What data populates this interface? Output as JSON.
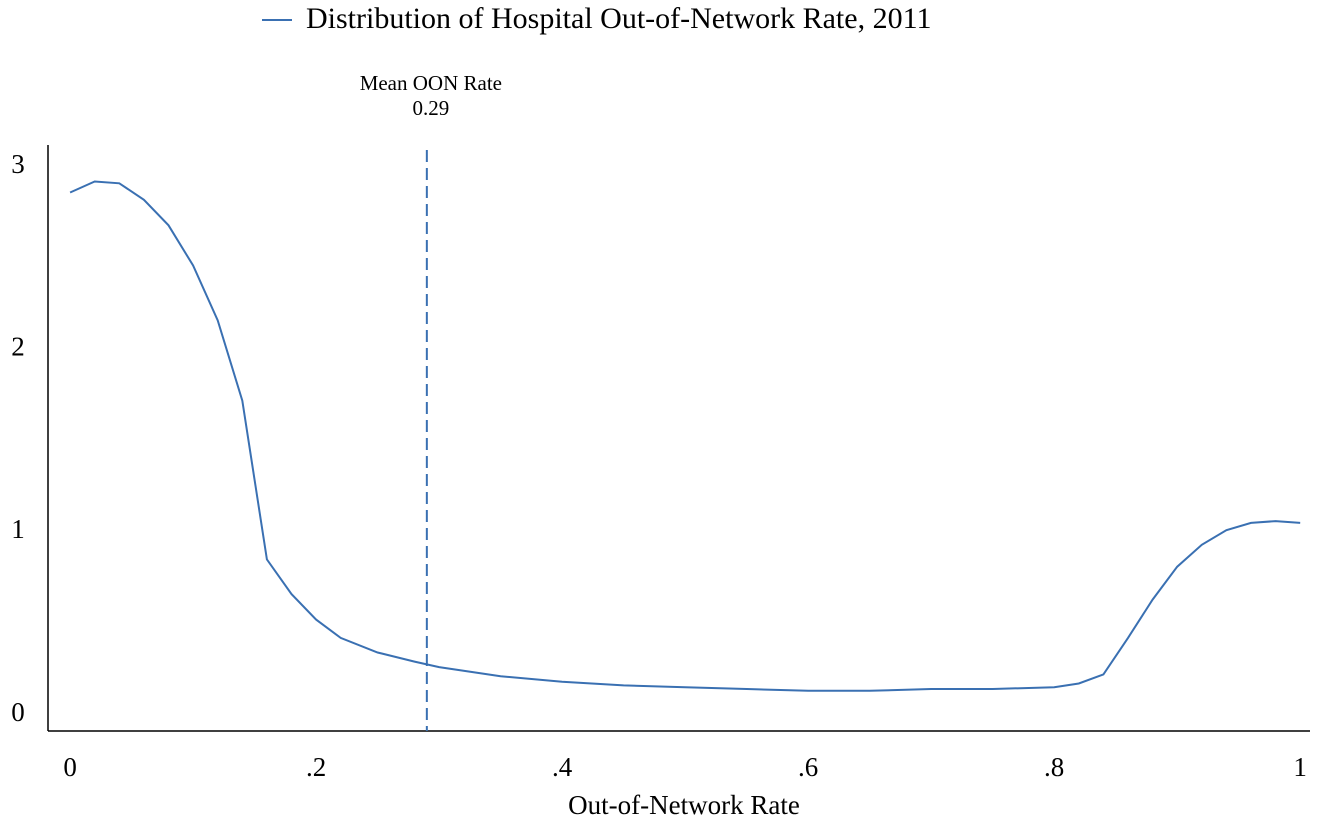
{
  "chart_data": {
    "type": "line",
    "x_label": "Out-of-Network Rate",
    "x": [
      0,
      0.02,
      0.04,
      0.06,
      0.08,
      0.1,
      0.12,
      0.14,
      0.16,
      0.18,
      0.2,
      0.22,
      0.25,
      0.28,
      0.3,
      0.35,
      0.4,
      0.45,
      0.5,
      0.55,
      0.6,
      0.65,
      0.7,
      0.75,
      0.8,
      0.82,
      0.84,
      0.86,
      0.88,
      0.9,
      0.92,
      0.94,
      0.96,
      0.98,
      1.0
    ],
    "series": [
      {
        "name": "Distribution of Hospital Out-of-Network Rate, 2011",
        "color": "#3a70b2",
        "values": [
          2.86,
          2.92,
          2.91,
          2.82,
          2.68,
          2.46,
          2.16,
          1.72,
          0.85,
          0.66,
          0.52,
          0.42,
          0.34,
          0.29,
          0.26,
          0.21,
          0.18,
          0.16,
          0.15,
          0.14,
          0.13,
          0.13,
          0.14,
          0.14,
          0.15,
          0.17,
          0.22,
          0.42,
          0.63,
          0.81,
          0.93,
          1.01,
          1.05,
          1.06,
          1.05
        ]
      }
    ],
    "mean_line": {
      "label": "Mean OON Rate",
      "value": 0.29
    },
    "xlim": [
      -0.018,
      1.008
    ],
    "ylim": [
      -0.09,
      3.12
    ],
    "xticks": [
      0,
      {
        "value": 0.2,
        "label": ".2"
      },
      {
        "value": 0.4,
        "label": ".4"
      },
      {
        "value": 0.6,
        "label": ".6"
      },
      {
        "value": 0.8,
        "label": ".8"
      },
      1
    ],
    "yticks": [
      0,
      1,
      2,
      3
    ],
    "grid": false,
    "legend": "top"
  }
}
